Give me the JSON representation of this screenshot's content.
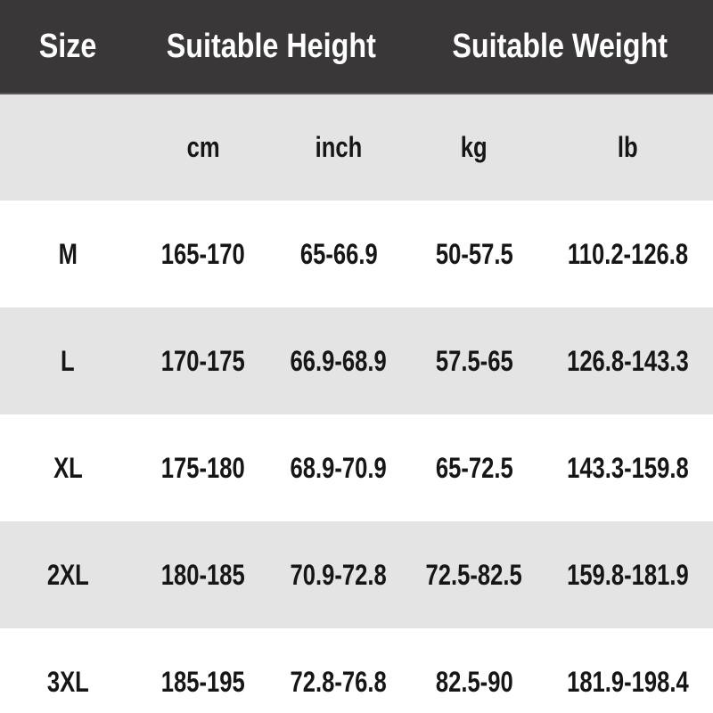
{
  "colors": {
    "header_bg": "#3a3738",
    "header_text": "#ffffff",
    "stripe_bg": "#e5e4e4",
    "row_bg": "#ffffff",
    "text": "#161616"
  },
  "table": {
    "header": {
      "size": "Size",
      "height": "Suitable Height",
      "weight": "Suitable Weight"
    },
    "units": {
      "cm": "cm",
      "inch": "inch",
      "kg": "kg",
      "lb": "lb"
    },
    "rows": [
      {
        "size": "M",
        "cm": "165-170",
        "inch": "65-66.9",
        "kg": "50-57.5",
        "lb": "110.2-126.8"
      },
      {
        "size": "L",
        "cm": "170-175",
        "inch": "66.9-68.9",
        "kg": "57.5-65",
        "lb": "126.8-143.3"
      },
      {
        "size": "XL",
        "cm": "175-180",
        "inch": "68.9-70.9",
        "kg": "65-72.5",
        "lb": "143.3-159.8"
      },
      {
        "size": "2XL",
        "cm": "180-185",
        "inch": "70.9-72.8",
        "kg": "72.5-82.5",
        "lb": "159.8-181.9"
      },
      {
        "size": "3XL",
        "cm": "185-195",
        "inch": "72.8-76.8",
        "kg": "82.5-90",
        "lb": "181.9-198.4"
      }
    ]
  },
  "chart_data": {
    "type": "table",
    "title": "Size chart: suitable height and weight per size",
    "columns": [
      "Size",
      "Suitable Height cm",
      "Suitable Height inch",
      "Suitable Weight kg",
      "Suitable Weight lb"
    ],
    "rows": [
      [
        "M",
        "165-170",
        "65-66.9",
        "50-57.5",
        "110.2-126.8"
      ],
      [
        "L",
        "170-175",
        "66.9-68.9",
        "57.5-65",
        "126.8-143.3"
      ],
      [
        "XL",
        "175-180",
        "68.9-70.9",
        "65-72.5",
        "143.3-159.8"
      ],
      [
        "2XL",
        "180-185",
        "70.9-72.8",
        "72.5-82.5",
        "159.8-181.9"
      ],
      [
        "3XL",
        "185-195",
        "72.8-76.8",
        "82.5-90",
        "181.9-198.4"
      ]
    ],
    "layout": {
      "header_style": "dark band with white text",
      "row_striping": "white / light gray alternating",
      "grid_lines": "none",
      "text_align": "center"
    }
  }
}
